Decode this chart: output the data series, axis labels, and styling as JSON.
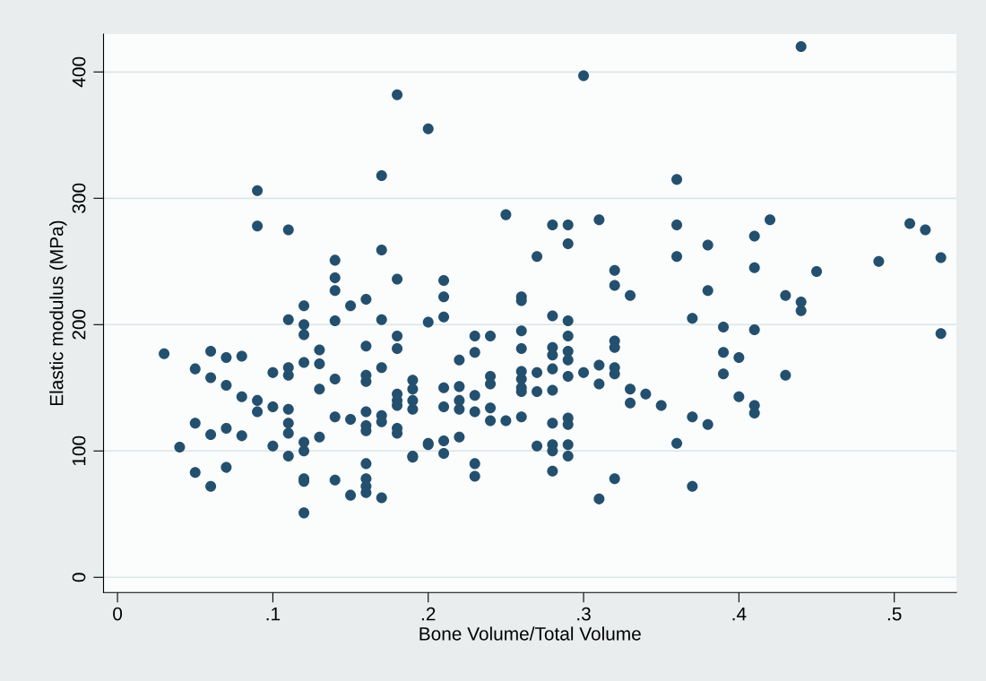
{
  "chart_data": {
    "type": "scatter",
    "xlabel": "Bone Volume/Total Volume",
    "ylabel": "Elastic modulus (MPa)",
    "xlim": [
      -0.009,
      0.54
    ],
    "ylim": [
      -12,
      430
    ],
    "xticks": [
      0,
      {
        "value": 0.1,
        "label": ".1"
      },
      {
        "value": 0.2,
        "label": ".2"
      },
      {
        "value": 0.3,
        "label": ".3"
      },
      {
        "value": 0.4,
        "label": ".4"
      },
      {
        "value": 0.5,
        "label": ".5"
      }
    ],
    "yticks": [
      0,
      100,
      200,
      300,
      400
    ],
    "grid": "y",
    "marker": "circle",
    "series": [
      {
        "color": "#24506f",
        "x": [
          0.03,
          0.04,
          0.05,
          0.05,
          0.05,
          0.06,
          0.06,
          0.06,
          0.06,
          0.07,
          0.07,
          0.07,
          0.07,
          0.08,
          0.08,
          0.08,
          0.09,
          0.09,
          0.09,
          0.09,
          0.1,
          0.1,
          0.1,
          0.11,
          0.11,
          0.11,
          0.11,
          0.11,
          0.11,
          0.11,
          0.11,
          0.12,
          0.12,
          0.12,
          0.12,
          0.12,
          0.12,
          0.12,
          0.12,
          0.12,
          0.13,
          0.13,
          0.13,
          0.13,
          0.14,
          0.14,
          0.14,
          0.14,
          0.14,
          0.14,
          0.14,
          0.15,
          0.15,
          0.15,
          0.16,
          0.16,
          0.16,
          0.16,
          0.16,
          0.16,
          0.16,
          0.16,
          0.16,
          0.16,
          0.16,
          0.17,
          0.17,
          0.17,
          0.17,
          0.17,
          0.17,
          0.17,
          0.18,
          0.18,
          0.18,
          0.18,
          0.18,
          0.18,
          0.18,
          0.18,
          0.18,
          0.19,
          0.19,
          0.19,
          0.19,
          0.19,
          0.19,
          0.2,
          0.2,
          0.2,
          0.2,
          0.21,
          0.21,
          0.21,
          0.21,
          0.21,
          0.21,
          0.21,
          0.22,
          0.22,
          0.22,
          0.22,
          0.22,
          0.23,
          0.23,
          0.23,
          0.23,
          0.23,
          0.23,
          0.24,
          0.24,
          0.24,
          0.24,
          0.24,
          0.25,
          0.25,
          0.26,
          0.26,
          0.26,
          0.26,
          0.26,
          0.26,
          0.26,
          0.26,
          0.26,
          0.27,
          0.27,
          0.27,
          0.27,
          0.28,
          0.28,
          0.28,
          0.28,
          0.28,
          0.28,
          0.28,
          0.28,
          0.28,
          0.28,
          0.29,
          0.29,
          0.29,
          0.29,
          0.29,
          0.29,
          0.29,
          0.29,
          0.29,
          0.29,
          0.29,
          0.3,
          0.3,
          0.31,
          0.31,
          0.31,
          0.31,
          0.32,
          0.32,
          0.32,
          0.32,
          0.32,
          0.32,
          0.32,
          0.33,
          0.33,
          0.33,
          0.34,
          0.35,
          0.36,
          0.36,
          0.36,
          0.36,
          0.37,
          0.37,
          0.37,
          0.38,
          0.38,
          0.38,
          0.39,
          0.39,
          0.39,
          0.4,
          0.4,
          0.41,
          0.41,
          0.41,
          0.41,
          0.41,
          0.42,
          0.43,
          0.43,
          0.44,
          0.44,
          0.44,
          0.45,
          0.49,
          0.51,
          0.52,
          0.53,
          0.53
        ],
        "values": [
          177,
          103,
          165,
          122,
          83,
          179,
          158,
          113,
          72,
          174,
          152,
          118,
          87,
          175,
          143,
          112,
          306,
          278,
          140,
          131,
          162,
          135,
          104,
          275,
          204,
          166,
          160,
          133,
          122,
          114,
          96,
          215,
          200,
          192,
          170,
          107,
          100,
          78,
          76,
          51,
          180,
          169,
          149,
          111,
          251,
          237,
          227,
          203,
          157,
          127,
          77,
          215,
          125,
          65,
          220,
          183,
          160,
          155,
          131,
          120,
          116,
          90,
          78,
          72,
          67,
          318,
          259,
          204,
          166,
          128,
          123,
          63,
          382,
          236,
          191,
          181,
          145,
          140,
          136,
          118,
          114,
          156,
          149,
          140,
          133,
          96,
          95,
          355,
          202,
          106,
          105,
          235,
          222,
          206,
          150,
          135,
          108,
          98,
          172,
          151,
          140,
          133,
          111,
          191,
          178,
          144,
          131,
          90,
          80,
          191,
          159,
          153,
          134,
          124,
          287,
          124,
          222,
          219,
          195,
          181,
          163,
          157,
          150,
          147,
          127,
          254,
          162,
          147,
          104,
          279,
          207,
          182,
          176,
          165,
          148,
          122,
          105,
          100,
          84,
          279,
          264,
          203,
          191,
          179,
          172,
          159,
          126,
          121,
          105,
          96,
          397,
          162,
          283,
          168,
          153,
          62,
          243,
          231,
          187,
          182,
          166,
          161,
          78,
          223,
          149,
          138,
          145,
          136,
          315,
          279,
          254,
          106,
          205,
          127,
          72,
          263,
          227,
          121,
          198,
          178,
          161,
          174,
          143,
          270,
          245,
          196,
          136,
          130,
          283,
          223,
          160,
          420,
          218,
          211,
          242,
          250,
          280,
          275,
          253,
          193
        ]
      }
    ]
  }
}
